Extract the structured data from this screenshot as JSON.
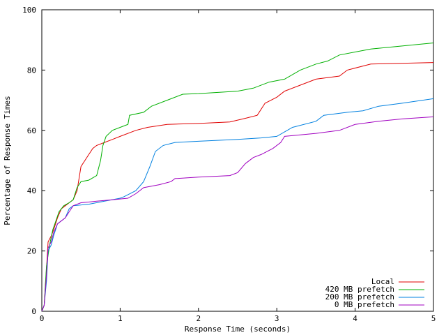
{
  "chart_data": {
    "type": "line",
    "title": "",
    "xlabel": "Response Time (seconds)",
    "ylabel": "Percentage of Response Times",
    "xlim": [
      0,
      5
    ],
    "ylim": [
      0,
      100
    ],
    "x_ticks": [
      0,
      1,
      2,
      3,
      4,
      5
    ],
    "y_ticks": [
      0,
      20,
      40,
      60,
      80,
      100
    ],
    "x_tick_labels": [
      "0",
      "1",
      "2",
      "3",
      "4",
      "5"
    ],
    "y_tick_labels": [
      "0",
      "20",
      "40",
      "60",
      "80",
      "100"
    ],
    "grid": false,
    "legend_position": "bottom-right",
    "series": [
      {
        "name": "Local",
        "color": "#e00000",
        "points": [
          [
            0,
            0
          ],
          [
            0.03,
            2
          ],
          [
            0.06,
            14
          ],
          [
            0.08,
            23
          ],
          [
            0.12,
            25
          ],
          [
            0.15,
            27
          ],
          [
            0.2,
            31
          ],
          [
            0.25,
            34
          ],
          [
            0.3,
            35
          ],
          [
            0.35,
            36
          ],
          [
            0.4,
            37
          ],
          [
            0.45,
            40
          ],
          [
            0.5,
            48
          ],
          [
            0.55,
            50
          ],
          [
            0.6,
            52
          ],
          [
            0.65,
            54
          ],
          [
            0.7,
            55
          ],
          [
            0.8,
            56
          ],
          [
            0.9,
            57
          ],
          [
            1.0,
            58
          ],
          [
            1.2,
            60
          ],
          [
            1.35,
            61
          ],
          [
            1.6,
            62
          ],
          [
            2.0,
            62.3
          ],
          [
            2.4,
            62.8
          ],
          [
            2.6,
            64
          ],
          [
            2.75,
            65
          ],
          [
            2.85,
            69
          ],
          [
            3.0,
            71
          ],
          [
            3.1,
            73
          ],
          [
            3.3,
            75
          ],
          [
            3.5,
            77
          ],
          [
            3.8,
            78
          ],
          [
            3.9,
            80
          ],
          [
            4.2,
            82
          ],
          [
            5.0,
            82.5
          ]
        ]
      },
      {
        "name": "420 MB prefetch",
        "color": "#00b000",
        "points": [
          [
            0,
            0
          ],
          [
            0.03,
            2
          ],
          [
            0.06,
            15
          ],
          [
            0.1,
            22
          ],
          [
            0.14,
            27
          ],
          [
            0.18,
            30
          ],
          [
            0.22,
            33
          ],
          [
            0.28,
            35
          ],
          [
            0.35,
            36
          ],
          [
            0.4,
            37
          ],
          [
            0.45,
            41
          ],
          [
            0.5,
            43
          ],
          [
            0.6,
            43.5
          ],
          [
            0.7,
            45
          ],
          [
            0.75,
            50
          ],
          [
            0.78,
            55
          ],
          [
            0.82,
            58
          ],
          [
            0.9,
            60
          ],
          [
            1.0,
            61
          ],
          [
            1.1,
            62
          ],
          [
            1.12,
            65
          ],
          [
            1.3,
            66
          ],
          [
            1.4,
            68
          ],
          [
            1.6,
            70
          ],
          [
            1.8,
            72
          ],
          [
            2.0,
            72.2
          ],
          [
            2.5,
            73
          ],
          [
            2.7,
            74
          ],
          [
            2.9,
            76
          ],
          [
            3.1,
            77
          ],
          [
            3.3,
            80
          ],
          [
            3.5,
            82
          ],
          [
            3.65,
            83
          ],
          [
            3.8,
            85
          ],
          [
            4.0,
            86
          ],
          [
            4.2,
            87
          ],
          [
            5.0,
            89
          ]
        ]
      },
      {
        "name": "200 MB prefetch",
        "color": "#0080e0",
        "points": [
          [
            0,
            0
          ],
          [
            0.03,
            2
          ],
          [
            0.06,
            10
          ],
          [
            0.08,
            20
          ],
          [
            0.12,
            22
          ],
          [
            0.15,
            25
          ],
          [
            0.2,
            29
          ],
          [
            0.25,
            30
          ],
          [
            0.3,
            31
          ],
          [
            0.35,
            34
          ],
          [
            0.4,
            35
          ],
          [
            0.6,
            35.5
          ],
          [
            0.8,
            36.5
          ],
          [
            1.0,
            37.5
          ],
          [
            1.05,
            38
          ],
          [
            1.2,
            40
          ],
          [
            1.3,
            43
          ],
          [
            1.38,
            48
          ],
          [
            1.45,
            53
          ],
          [
            1.55,
            55
          ],
          [
            1.7,
            56
          ],
          [
            2.0,
            56.4
          ],
          [
            2.5,
            57
          ],
          [
            2.8,
            57.5
          ],
          [
            3.0,
            58
          ],
          [
            3.2,
            61
          ],
          [
            3.5,
            63
          ],
          [
            3.6,
            65
          ],
          [
            3.9,
            66
          ],
          [
            4.1,
            66.5
          ],
          [
            4.3,
            68
          ],
          [
            4.6,
            69
          ],
          [
            5.0,
            70.5
          ]
        ]
      },
      {
        "name": "0 MB prefetch",
        "color": "#a000c0",
        "points": [
          [
            0,
            0
          ],
          [
            0.03,
            2
          ],
          [
            0.06,
            12
          ],
          [
            0.08,
            21
          ],
          [
            0.12,
            23
          ],
          [
            0.15,
            26
          ],
          [
            0.2,
            29
          ],
          [
            0.3,
            31
          ],
          [
            0.35,
            33
          ],
          [
            0.4,
            35
          ],
          [
            0.5,
            36
          ],
          [
            0.7,
            36.5
          ],
          [
            0.9,
            37
          ],
          [
            1.1,
            37.5
          ],
          [
            1.2,
            39
          ],
          [
            1.3,
            41
          ],
          [
            1.5,
            42
          ],
          [
            1.65,
            43
          ],
          [
            1.7,
            44
          ],
          [
            2.0,
            44.5
          ],
          [
            2.4,
            45
          ],
          [
            2.5,
            46
          ],
          [
            2.6,
            49
          ],
          [
            2.7,
            51
          ],
          [
            2.8,
            52
          ],
          [
            2.95,
            54
          ],
          [
            3.05,
            56
          ],
          [
            3.1,
            58
          ],
          [
            3.3,
            58.5
          ],
          [
            3.5,
            59
          ],
          [
            3.8,
            60
          ],
          [
            4.0,
            62
          ],
          [
            4.3,
            63
          ],
          [
            4.6,
            63.8
          ],
          [
            5.0,
            64.5
          ]
        ]
      }
    ]
  }
}
